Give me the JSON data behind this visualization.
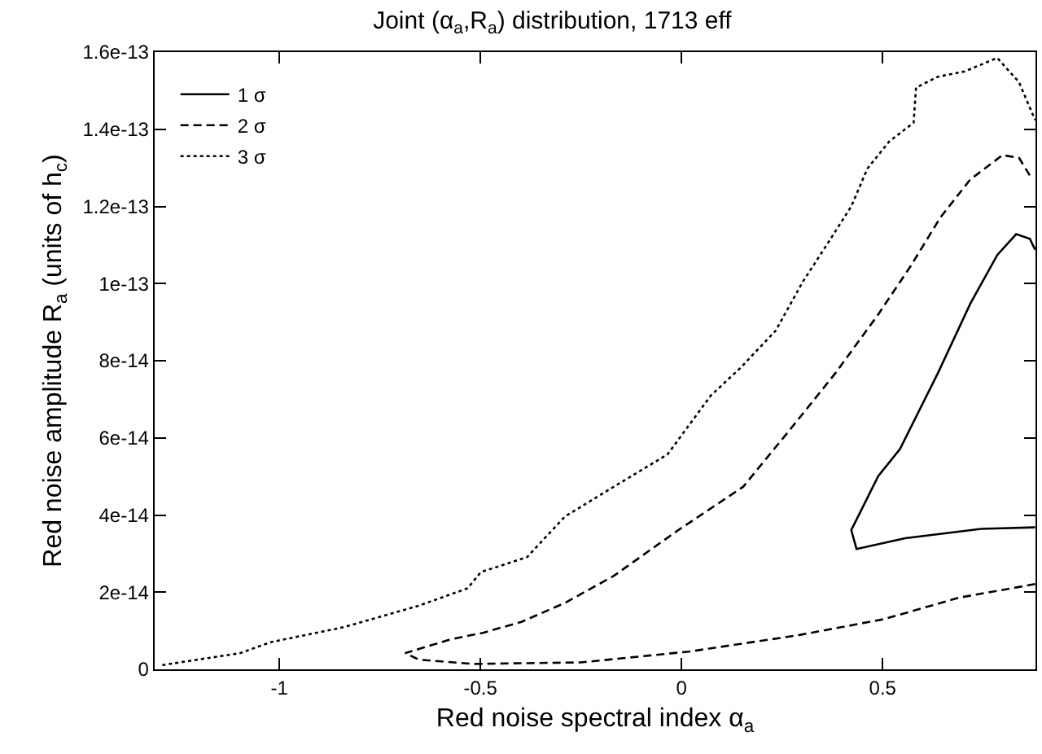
{
  "chart_data": {
    "type": "line",
    "title": "Joint (α$_{a}$,R$_{a}$) distribution, 1713 eff",
    "xlabel": "Red noise spectral index α$_{a}$",
    "ylabel": "Red noise amplitude R$_{a}$ (units of h$_{c}$)",
    "xlim": [
      -1.31,
      0.88
    ],
    "xticks": [
      -1,
      -0.5,
      0,
      0.5
    ],
    "ylim": [
      0,
      1.6e-13
    ],
    "yticks": [
      0,
      {
        "value": 2e-14,
        "label": "2e-14"
      },
      {
        "value": 4e-14,
        "label": "4e-14"
      },
      {
        "value": 6e-14,
        "label": "6e-14"
      },
      {
        "value": 8e-14,
        "label": "8e-14"
      },
      {
        "value": 1e-13,
        "label": "1e-13"
      },
      {
        "value": 1.2e-13,
        "label": "1.2e-13"
      },
      {
        "value": 1.4e-13,
        "label": "1.4e-13"
      },
      {
        "value": 1.6e-13,
        "label": "1.6e-13"
      }
    ],
    "legend": "top left",
    "marker": "none",
    "series": [
      {
        "name": "1 σ",
        "color": "#000000",
        "line_style": "solid",
        "x": [
          0.879,
          0.745,
          0.556,
          0.435,
          0.422,
          0.449,
          0.489,
          0.543,
          0.637,
          0.718,
          0.785,
          0.832,
          0.866,
          0.879
        ],
        "values": [
          3.68e-14,
          3.64e-14,
          3.4e-14,
          3.12e-14,
          3.61e-14,
          4.17e-14,
          5.01e-14,
          5.71e-14,
          7.67e-14,
          9.48e-14,
          1.074e-13,
          1.128e-13,
          1.116e-13,
          1.088e-13
        ]
      },
      {
        "name": "2 σ",
        "color": "#000000",
        "line_style": "dashed",
        "x": [
          0.879,
          0.691,
          0.503,
          0.288,
          0.019,
          -0.25,
          -0.519,
          -0.653,
          -0.687,
          -0.573,
          -0.492,
          -0.398,
          -0.29,
          -0.169,
          -0.008,
          0.153,
          0.274,
          0.382,
          0.489,
          0.57,
          0.644,
          0.718,
          0.798,
          0.839,
          0.872
        ],
        "values": [
          2.21e-14,
          1.86e-14,
          1.3e-14,
          8.8e-15,
          4.6e-15,
          1.8e-15,
          1.4e-15,
          2.5e-15,
          4.2e-15,
          7.8e-15,
          9.5e-15,
          1.23e-14,
          1.72e-14,
          2.42e-14,
          3.61e-14,
          4.73e-14,
          6.27e-14,
          7.67e-14,
          9.2e-14,
          1.046e-13,
          1.172e-13,
          1.27e-13,
          1.333e-13,
          1.326e-13,
          1.27e-13
        ]
      },
      {
        "name": "3 σ",
        "color": "#000000",
        "line_style": "dotted",
        "x": [
          -1.291,
          -1.097,
          -1.023,
          -0.841,
          -0.653,
          -0.532,
          -0.499,
          -0.384,
          -0.29,
          -0.169,
          -0.035,
          0.073,
          0.146,
          0.234,
          0.301,
          0.362,
          0.422,
          0.462,
          0.516,
          0.577,
          0.583,
          0.637,
          0.704,
          0.785,
          0.839,
          0.879
        ],
        "values": [
          1.1e-15,
          4.2e-15,
          7e-15,
          1.09e-14,
          1.65e-14,
          2.1e-14,
          2.52e-14,
          2.91e-14,
          3.96e-14,
          4.73e-14,
          5.57e-14,
          7.1e-14,
          7.81e-14,
          8.78e-14,
          1.004e-13,
          1.102e-13,
          1.2e-13,
          1.298e-13,
          1.368e-13,
          1.417e-13,
          1.508e-13,
          1.536e-13,
          1.55e-13,
          1.585e-13,
          1.522e-13,
          1.424e-13
        ]
      }
    ]
  }
}
